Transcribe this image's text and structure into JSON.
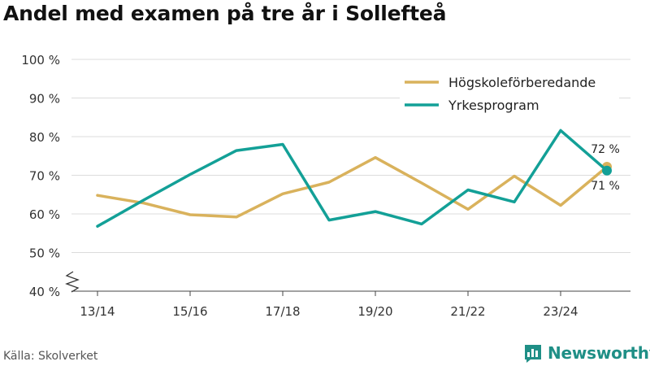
{
  "chart_data": {
    "type": "line",
    "title": "Andel med examen på tre år i Sollefteå",
    "x": [
      "13/14",
      "14/15",
      "15/16",
      "16/17",
      "17/18",
      "18/19",
      "19/20",
      "20/21",
      "21/22",
      "22/23",
      "23/24",
      "24/25"
    ],
    "tick_labels": [
      "13/14",
      "15/16",
      "17/18",
      "19/20",
      "21/22",
      "23/24"
    ],
    "ylim": [
      40,
      100
    ],
    "yticks": [
      40,
      50,
      60,
      70,
      80,
      90,
      100
    ],
    "y_tick_suffix": " %",
    "grid": true,
    "legend_position": "top-right",
    "series": [
      {
        "name": "Högskoleförberedande",
        "color": "#d9b25c",
        "values": [
          64.8,
          62.8,
          59.8,
          59.2,
          65.2,
          68.2,
          74.6,
          68.0,
          61.2,
          69.8,
          62.2,
          72.2
        ],
        "end_label": "72 %"
      },
      {
        "name": "Yrkesprogram",
        "color": "#13a097",
        "values": [
          56.8,
          63.6,
          70.2,
          76.4,
          78.0,
          58.4,
          60.6,
          57.4,
          66.2,
          63.1,
          81.6,
          71.2
        ],
        "end_label": "71 %"
      }
    ]
  },
  "footer": {
    "source": "Källa: Skolverket",
    "brand": "Newsworthy"
  }
}
